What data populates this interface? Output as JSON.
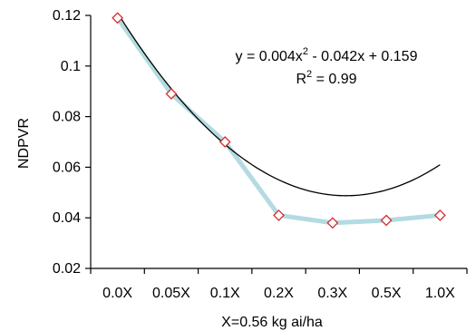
{
  "chart_data": {
    "type": "line",
    "title": "",
    "xlabel": "X=0.56 kg ai/ha",
    "ylabel": "NDPVR",
    "categories": [
      "0.0X",
      "0.05X",
      "0.1X",
      "0.2X",
      "0.3X",
      "0.5X",
      "1.0X"
    ],
    "series": [
      {
        "values": [
          0.119,
          0.089,
          0.07,
          0.041,
          0.038,
          0.039,
          0.041
        ]
      }
    ],
    "trendline": {
      "type": "polynomial",
      "coefficients": {
        "a": 0.004,
        "b": -0.042,
        "c": 0.159
      }
    },
    "equation_text": {
      "line1_prefix": "y = 0.004x",
      "line1_exp": "2",
      "line1_suffix": " - 0.042x + 0.159",
      "line2_prefix": "R",
      "line2_exp": "2",
      "line2_suffix": " = 0.99"
    },
    "ylim": [
      0.02,
      0.12
    ],
    "yticks": [
      {
        "value": 0.02,
        "label": "0.02"
      },
      {
        "value": 0.04,
        "label": "0.04"
      },
      {
        "value": 0.06,
        "label": "0.06"
      },
      {
        "value": 0.08,
        "label": "0.08"
      },
      {
        "value": 0.1,
        "label": "0.1"
      },
      {
        "value": 0.12,
        "label": "0.12"
      }
    ],
    "grid": false,
    "colors": {
      "series_line": "#b3dbe1",
      "marker_stroke": "#d92b2b",
      "marker_fill": "#ffffff",
      "trendline": "#000000",
      "axis": "#000000"
    }
  }
}
